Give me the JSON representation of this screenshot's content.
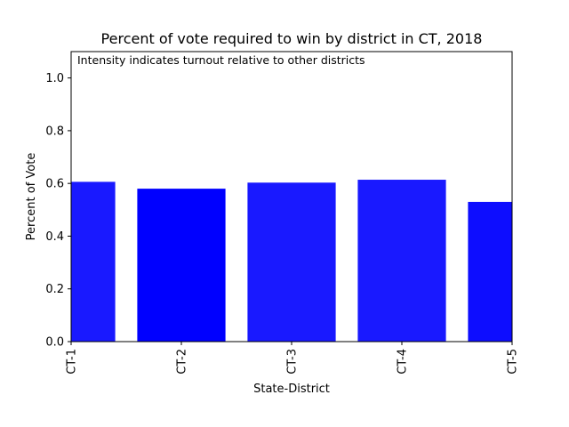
{
  "chart_data": {
    "type": "bar",
    "title": "Percent of vote required to win by district in CT, 2018",
    "annotation": "Intensity indicates turnout relative to other districts",
    "xlabel": "State-District",
    "ylabel": "Percent of Vote",
    "categories": [
      "CT-1",
      "CT-2",
      "CT-3",
      "CT-4",
      "CT-5"
    ],
    "values": [
      0.606,
      0.58,
      0.603,
      0.614,
      0.53
    ],
    "ylim": [
      0,
      1.1
    ],
    "xlim": [
      0,
      4
    ],
    "yticks": [
      "0.0",
      "0.2",
      "0.4",
      "0.6",
      "0.8",
      "1.0"
    ],
    "bar_color": "#0000ff",
    "bar_opacity": [
      0.9,
      1.0,
      0.9,
      0.9,
      0.95
    ],
    "grid": false,
    "legend": "none"
  }
}
